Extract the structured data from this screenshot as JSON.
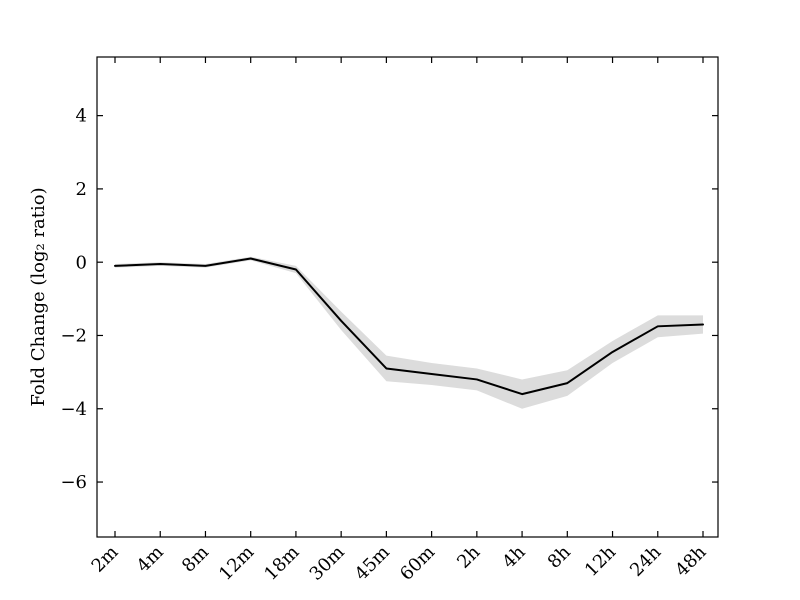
{
  "figure": {
    "background": "#ffffff"
  },
  "chart_data": {
    "type": "line",
    "title": "",
    "xlabel": "",
    "ylabel": "Fold Change (log₂ ratio)",
    "categories": [
      "2m",
      "4m",
      "8m",
      "12m",
      "18m",
      "30m",
      "45m",
      "60m",
      "2h",
      "4h",
      "8h",
      "12h",
      "24h",
      "48h"
    ],
    "series": [
      {
        "name": "fold_change_log2_ratio",
        "values": [
          -0.1,
          -0.05,
          -0.1,
          0.1,
          -0.2,
          -1.6,
          -2.9,
          -3.05,
          -3.2,
          -3.6,
          -3.3,
          -2.45,
          -1.75,
          -1.7
        ],
        "band_upper": [
          -0.05,
          0.0,
          -0.05,
          0.15,
          -0.1,
          -1.35,
          -2.55,
          -2.75,
          -2.9,
          -3.2,
          -2.95,
          -2.15,
          -1.45,
          -1.45
        ],
        "band_lower": [
          -0.15,
          -0.1,
          -0.15,
          0.05,
          -0.3,
          -1.85,
          -3.25,
          -3.35,
          -3.5,
          -4.0,
          -3.65,
          -2.75,
          -2.05,
          -1.95
        ]
      }
    ],
    "yticks": [
      -6,
      -4,
      -2,
      0,
      2,
      4
    ],
    "ytick_labels": [
      "−6",
      "−4",
      "−2",
      "0",
      "2",
      "4"
    ],
    "ylim": [
      -7.5,
      5.6
    ],
    "grid": false,
    "legend": "none",
    "line_color": "#000000",
    "band_color": "#dcdcdc",
    "axis_color": "#000000"
  }
}
